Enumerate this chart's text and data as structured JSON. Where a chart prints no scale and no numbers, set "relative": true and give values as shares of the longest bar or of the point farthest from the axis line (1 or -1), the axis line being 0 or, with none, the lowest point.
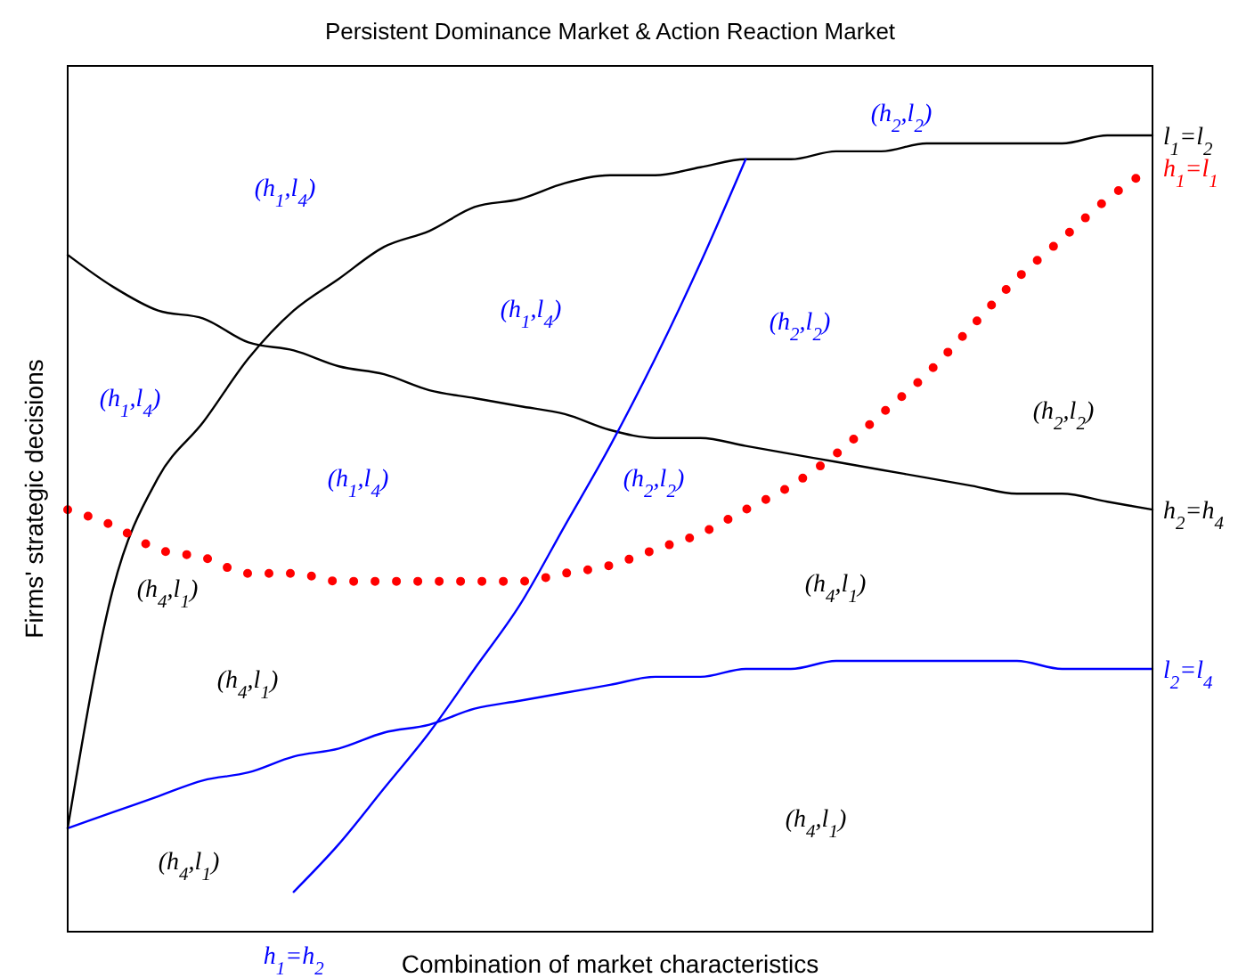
{
  "chart_data": {
    "type": "line",
    "title": "Persistent Dominance Market & Action Reaction Market",
    "xlabel": "Combination of market characteristics",
    "ylabel": "Firms' strategic decisions",
    "relative": true,
    "categories": [
      null,
      null,
      null,
      null,
      null,
      null,
      null,
      null,
      null,
      null,
      null,
      null,
      null,
      null,
      null,
      null,
      null,
      null,
      null,
      null,
      null,
      null,
      null,
      null,
      null
    ],
    "series": [
      {
        "name": "l$_{1}$=l$_{2}$",
        "color": "#000000",
        "values": [
          0.13,
          0.43,
          0.57,
          0.64,
          0.72,
          0.78,
          0.82,
          0.86,
          0.88,
          0.91,
          0.92,
          0.94,
          0.95,
          0.95,
          0.96,
          0.97,
          0.97,
          0.98,
          0.98,
          0.99,
          0.99,
          0.99,
          0.99,
          1.0,
          1.0
        ]
      },
      {
        "name": "h$_{1}$=l$_{1}$",
        "color": "#ff0000",
        "line_style": "dotted",
        "values": [
          0.53,
          0.51,
          0.48,
          0.47,
          0.45,
          0.45,
          0.44,
          0.44,
          0.44,
          0.44,
          0.44,
          0.45,
          0.46,
          0.48,
          0.5,
          0.53,
          0.56,
          0.6,
          0.65,
          0.7,
          0.76,
          0.82,
          0.87,
          0.92,
          0.96
        ]
      },
      {
        "name": "h$_{2}$=h$_{4}$",
        "color": "#000000",
        "values": [
          0.85,
          0.81,
          0.78,
          0.77,
          0.74,
          0.73,
          0.71,
          0.7,
          0.68,
          0.67,
          0.66,
          0.65,
          0.63,
          0.62,
          0.62,
          0.61,
          0.6,
          0.59,
          0.58,
          0.57,
          0.56,
          0.55,
          0.55,
          0.54,
          0.53
        ]
      },
      {
        "name": "l$_{2}$=l$_{4}$",
        "color": "#0000ff",
        "values": [
          0.13,
          0.15,
          0.17,
          0.19,
          0.2,
          0.22,
          0.23,
          0.25,
          0.26,
          0.28,
          0.29,
          0.3,
          0.31,
          0.32,
          0.32,
          0.33,
          0.33,
          0.34,
          0.34,
          0.34,
          0.34,
          0.34,
          0.33,
          0.33,
          0.33
        ]
      },
      {
        "name": "h$_{1}$=h$_{2}$",
        "color": "#0000ff",
        "values": [
          null,
          null,
          null,
          null,
          null,
          0.05,
          0.11,
          0.18,
          0.25,
          0.33,
          0.41,
          0.51,
          0.61,
          0.72,
          0.84,
          0.97,
          null,
          null,
          null,
          null,
          null,
          null,
          null,
          null,
          null
        ]
      }
    ],
    "annotations": [
      "(h$_{1}$,l$_{4}$)",
      "(h$_{1}$,l$_{4}$)",
      "(h$_{1}$,l$_{4}$)",
      "(h$_{1}$,l$_{4}$)",
      "(h$_{2}$,l$_{2}$)",
      "(h$_{2}$,l$_{2}$)",
      "(h$_{2}$,l$_{2}$)",
      "(h$_{2}$,l$_{2}$)",
      "(h$_{4}$,l$_{1}$)",
      "(h$_{4}$,l$_{1}$)",
      "(h$_{4}$,l$_{1}$)",
      "(h$_{4}$,l$_{1}$)",
      "(h$_{4}$,l$_{1}$)"
    ]
  }
}
